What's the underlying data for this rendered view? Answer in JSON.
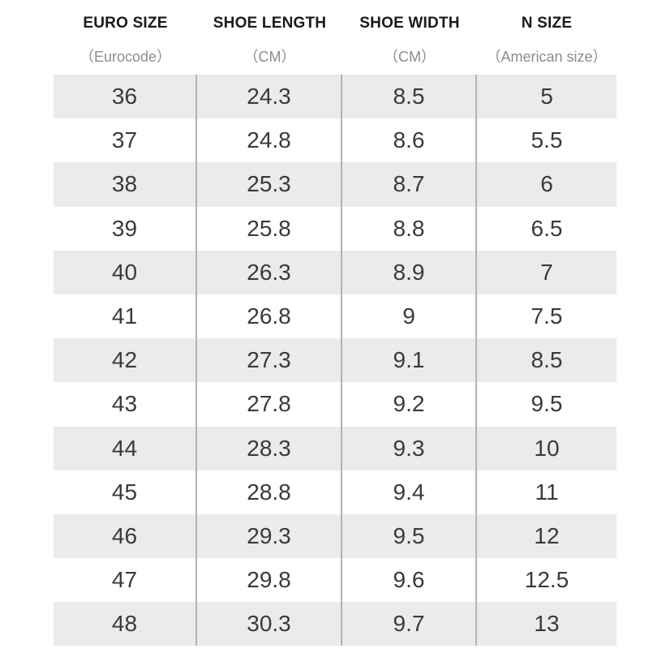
{
  "table": {
    "headers": [
      {
        "title": "EURO SIZE",
        "sub": "（Eurocode）"
      },
      {
        "title": "SHOE LENGTH",
        "sub": "（CM）"
      },
      {
        "title": "SHOE WIDTH",
        "sub": "（CM）"
      },
      {
        "title": "N SIZE",
        "sub": "（American size）"
      }
    ],
    "rows": [
      [
        "36",
        "24.3",
        "8.5",
        "5"
      ],
      [
        "37",
        "24.8",
        "8.6",
        "5.5"
      ],
      [
        "38",
        "25.3",
        "8.7",
        "6"
      ],
      [
        "39",
        "25.8",
        "8.8",
        "6.5"
      ],
      [
        "40",
        "26.3",
        "8.9",
        "7"
      ],
      [
        "41",
        "26.8",
        "9",
        "7.5"
      ],
      [
        "42",
        "27.3",
        "9.1",
        "8.5"
      ],
      [
        "43",
        "27.8",
        "9.2",
        "9.5"
      ],
      [
        "44",
        "28.3",
        "9.3",
        "10"
      ],
      [
        "45",
        "28.8",
        "9.4",
        "11"
      ],
      [
        "46",
        "29.3",
        "9.5",
        "12"
      ],
      [
        "47",
        "29.8",
        "9.6",
        "12.5"
      ],
      [
        "48",
        "30.3",
        "9.7",
        "13"
      ]
    ]
  },
  "colors": {
    "shaded_row": "#ebebeb",
    "divider": "#b3b3b3",
    "header_text": "#1a1a1a",
    "sub_text": "#8c8c8c",
    "cell_text": "#3a3a3a"
  }
}
